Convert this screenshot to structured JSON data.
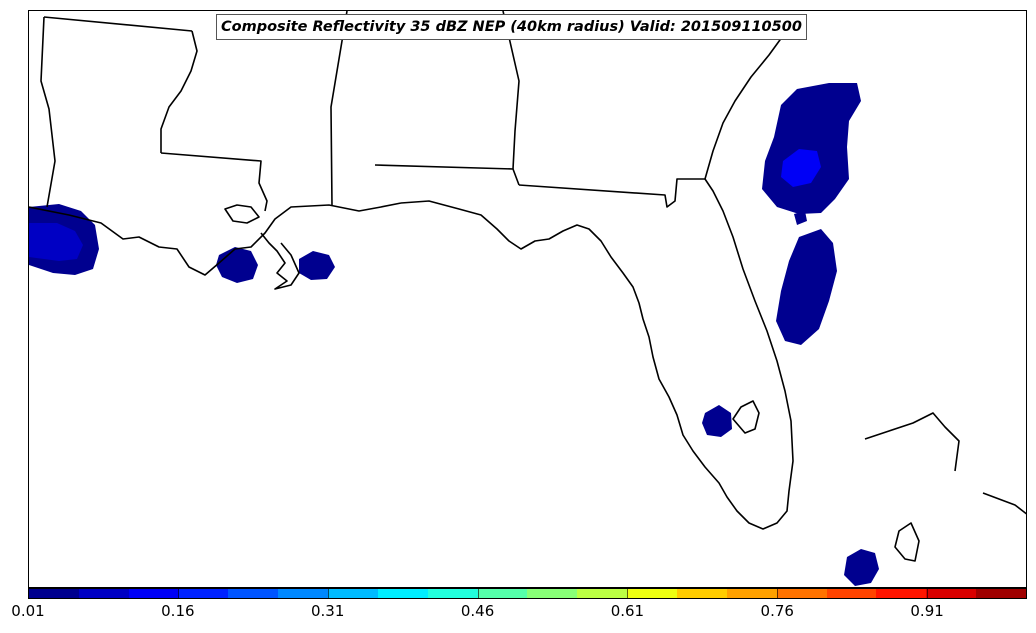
{
  "title": "Composite Reflectivity 35 dBZ NEP (40km radius) Valid: 201509110500",
  "colorbar": {
    "colors": [
      "#00008f",
      "#0000c4",
      "#0000f6",
      "#0022ff",
      "#0055ff",
      "#0088ff",
      "#00bbff",
      "#00eeff",
      "#22ffdd",
      "#55ffaa",
      "#88ff77",
      "#bbff44",
      "#eeff11",
      "#ffcc00",
      "#ffa100",
      "#ff7300",
      "#ff4400",
      "#ff1500",
      "#d90000",
      "#9f0000"
    ],
    "ticks": [
      "0.01",
      "0.16",
      "0.31",
      "0.46",
      "0.61",
      "0.76",
      "0.91"
    ]
  },
  "map": {
    "region": "Gulf Coast / Florida",
    "land_color": "#ffffff",
    "coast_color": "#000000",
    "probability_areas": [
      {
        "area": "off Louisiana coast",
        "level": "0.01-0.16"
      },
      {
        "area": "Mississippi delta",
        "level": "0.01"
      },
      {
        "area": "Mississippi Sound",
        "level": "0.01"
      },
      {
        "area": "Atlantic off Georgia",
        "level": "0.01-0.16"
      },
      {
        "area": "Atlantic off north Florida",
        "level": "0.01"
      },
      {
        "area": "west of Lake Okeechobee",
        "level": "0.01"
      },
      {
        "area": "near Bahamas",
        "level": "0.01"
      }
    ]
  }
}
